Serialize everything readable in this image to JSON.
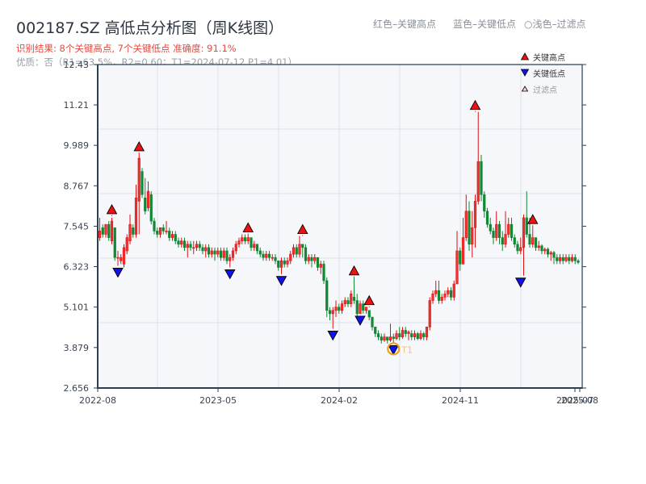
{
  "header": {
    "title": "002187.SZ 高低点分析图（周K线图）",
    "result": "识别结果: 8个关键高点, 7个关键低点   准确度: 91.1%",
    "quality": "优质：否（R1=63.5%，R2=0.60；T1=2024-07-12 P1=4.01）"
  },
  "top_legend": {
    "red": "红色–关键高点",
    "blue": "蓝色–关键低点",
    "light": "○浅色–过滤点"
  },
  "legend": {
    "items": [
      {
        "label": "关键高点",
        "icon": "red-up-triangle-icon",
        "color": "#ee1111"
      },
      {
        "label": "关键低点",
        "icon": "blue-down-triangle-icon",
        "color": "#1111ee"
      },
      {
        "label": "过滤点",
        "icon": "hollow-up-triangle-icon",
        "color": "#ffcccc"
      }
    ]
  },
  "colors": {
    "up": "#dd1111",
    "down": "#118833",
    "plot_bg": "#f5f7fa",
    "grid": "#dde1e6",
    "axis": "#2c3e50",
    "t1_marker": "#f0a020"
  },
  "chart_data": {
    "type": "candlestick",
    "title": "002187.SZ 高低点分析图（周K线图）",
    "xlabel": "",
    "ylabel": "",
    "ylim": [
      2.656,
      12.43
    ],
    "yticks": [
      "2.656",
      "3.879",
      "5.101",
      "6.323",
      "7.545",
      "8.767",
      "9.989",
      "11.21",
      "12.43"
    ],
    "xticks": [
      "2022-08",
      "2023-05",
      "2024-02",
      "2024-11",
      "2025-07",
      "2025-08"
    ],
    "grid": true,
    "legend_position": "top-right inside",
    "annotation": "T1",
    "key_highs": [
      {
        "index": 4,
        "price": 7.85
      },
      {
        "index": 13,
        "price": 9.75
      },
      {
        "index": 49,
        "price": 7.3
      },
      {
        "index": 67,
        "price": 7.25
      },
      {
        "index": 84,
        "price": 6.0
      },
      {
        "index": 89,
        "price": 5.1
      },
      {
        "index": 124,
        "price": 11.0
      },
      {
        "index": 143,
        "price": 7.55
      }
    ],
    "key_lows": [
      {
        "index": 6,
        "price": 6.35
      },
      {
        "index": 43,
        "price": 6.3
      },
      {
        "index": 60,
        "price": 6.1
      },
      {
        "index": 77,
        "price": 4.45
      },
      {
        "index": 86,
        "price": 4.9
      },
      {
        "index": 97,
        "price": 4.01
      },
      {
        "index": 139,
        "price": 6.05
      }
    ],
    "t1": {
      "index": 97,
      "price": 4.01,
      "label": "T1"
    },
    "candles": [
      [
        7.2,
        7.4,
        7.8,
        7.1
      ],
      [
        7.5,
        7.3,
        7.6,
        7.2
      ],
      [
        7.3,
        7.6,
        7.6,
        7.2
      ],
      [
        7.6,
        7.2,
        7.7,
        7.1
      ],
      [
        7.1,
        7.7,
        7.8,
        7.0
      ],
      [
        7.5,
        6.6,
        7.5,
        6.5
      ],
      [
        6.6,
        6.6,
        6.8,
        6.35
      ],
      [
        6.5,
        6.6,
        6.7,
        6.4
      ],
      [
        6.4,
        6.9,
        7.0,
        6.3
      ],
      [
        6.8,
        7.2,
        7.3,
        6.7
      ],
      [
        7.1,
        7.6,
        7.9,
        7.0
      ],
      [
        7.5,
        7.3,
        7.6,
        7.2
      ],
      [
        7.3,
        8.4,
        8.8,
        7.2
      ],
      [
        8.3,
        9.6,
        9.75,
        7.3
      ],
      [
        9.2,
        8.5,
        9.3,
        8.4
      ],
      [
        8.4,
        8.0,
        9.0,
        7.9
      ],
      [
        8.1,
        8.6,
        8.9,
        8.0
      ],
      [
        8.5,
        7.7,
        8.6,
        7.6
      ],
      [
        7.7,
        7.4,
        7.8,
        7.3
      ],
      [
        7.4,
        7.3,
        7.5,
        7.2
      ],
      [
        7.3,
        7.5,
        7.5,
        7.2
      ],
      [
        7.5,
        7.4,
        7.6,
        7.3
      ],
      [
        7.4,
        7.4,
        7.7,
        7.3
      ],
      [
        7.4,
        7.2,
        7.5,
        7.1
      ],
      [
        7.2,
        7.3,
        7.4,
        7.1
      ],
      [
        7.3,
        7.1,
        7.4,
        7.0
      ],
      [
        7.1,
        7.0,
        7.2,
        6.9
      ],
      [
        7.0,
        7.1,
        7.2,
        6.9
      ],
      [
        7.1,
        6.9,
        7.2,
        6.8
      ],
      [
        6.9,
        7.0,
        7.1,
        6.6
      ],
      [
        7.0,
        6.9,
        7.1,
        6.8
      ],
      [
        6.9,
        6.9,
        7.1,
        6.7
      ],
      [
        6.9,
        7.0,
        7.1,
        6.8
      ],
      [
        7.0,
        6.9,
        7.1,
        6.8
      ],
      [
        6.9,
        6.8,
        7.0,
        6.7
      ],
      [
        6.8,
        6.9,
        7.0,
        6.6
      ],
      [
        6.9,
        6.7,
        7.0,
        6.6
      ],
      [
        6.7,
        6.8,
        6.9,
        6.6
      ],
      [
        6.8,
        6.7,
        6.9,
        6.5
      ],
      [
        6.7,
        6.8,
        6.9,
        6.6
      ],
      [
        6.8,
        6.6,
        6.9,
        6.5
      ],
      [
        6.6,
        6.8,
        6.9,
        6.5
      ],
      [
        6.8,
        6.5,
        6.9,
        6.4
      ],
      [
        6.5,
        6.6,
        6.7,
        6.3
      ],
      [
        6.6,
        6.8,
        6.9,
        6.5
      ],
      [
        6.8,
        7.0,
        7.1,
        6.7
      ],
      [
        7.0,
        7.1,
        7.2,
        6.9
      ],
      [
        7.1,
        7.2,
        7.3,
        7.0
      ],
      [
        7.2,
        7.1,
        7.3,
        7.0
      ],
      [
        7.1,
        7.2,
        7.3,
        7.0
      ],
      [
        7.2,
        6.9,
        7.2,
        6.8
      ],
      [
        6.9,
        7.0,
        7.1,
        6.8
      ],
      [
        7.0,
        6.8,
        7.0,
        6.7
      ],
      [
        6.8,
        6.7,
        6.9,
        6.6
      ],
      [
        6.7,
        6.6,
        6.8,
        6.5
      ],
      [
        6.6,
        6.7,
        6.8,
        6.5
      ],
      [
        6.7,
        6.6,
        6.8,
        6.5
      ],
      [
        6.6,
        6.6,
        6.7,
        6.5
      ],
      [
        6.6,
        6.5,
        6.7,
        6.4
      ],
      [
        6.5,
        6.3,
        6.5,
        6.2
      ],
      [
        6.3,
        6.5,
        6.6,
        6.1
      ],
      [
        6.5,
        6.4,
        6.6,
        6.3
      ],
      [
        6.4,
        6.5,
        6.6,
        6.3
      ],
      [
        6.5,
        6.7,
        6.8,
        6.4
      ],
      [
        6.7,
        6.9,
        7.0,
        6.6
      ],
      [
        6.9,
        6.7,
        7.0,
        6.6
      ],
      [
        6.7,
        7.0,
        7.25,
        6.6
      ],
      [
        7.0,
        6.9,
        7.0,
        6.6
      ],
      [
        6.9,
        6.5,
        7.0,
        6.4
      ],
      [
        6.5,
        6.6,
        6.7,
        6.4
      ],
      [
        6.6,
        6.5,
        6.7,
        6.3
      ],
      [
        6.5,
        6.6,
        6.7,
        6.4
      ],
      [
        6.6,
        6.3,
        6.6,
        6.2
      ],
      [
        6.3,
        6.4,
        6.5,
        6.1
      ],
      [
        6.4,
        5.9,
        6.5,
        5.8
      ],
      [
        5.9,
        5.0,
        6.0,
        4.8
      ],
      [
        5.0,
        4.9,
        5.1,
        4.7
      ],
      [
        4.9,
        5.0,
        5.1,
        4.45
      ],
      [
        5.0,
        5.1,
        5.3,
        4.8
      ],
      [
        5.1,
        5.0,
        5.2,
        4.9
      ],
      [
        5.0,
        5.2,
        5.3,
        4.9
      ],
      [
        5.2,
        5.3,
        5.4,
        5.1
      ],
      [
        5.3,
        5.2,
        5.4,
        5.1
      ],
      [
        5.2,
        5.5,
        5.6,
        5.1
      ],
      [
        5.4,
        5.3,
        6.0,
        5.2
      ],
      [
        5.3,
        4.9,
        5.5,
        4.8
      ],
      [
        4.9,
        5.2,
        5.3,
        4.9
      ],
      [
        5.2,
        5.0,
        5.3,
        4.9
      ],
      [
        5.0,
        5.1,
        5.1,
        4.9
      ],
      [
        5.0,
        4.8,
        5.0,
        4.7
      ],
      [
        4.8,
        4.5,
        4.8,
        4.4
      ],
      [
        4.5,
        4.3,
        4.5,
        4.2
      ],
      [
        4.3,
        4.2,
        4.4,
        4.1
      ],
      [
        4.2,
        4.1,
        4.3,
        4.0
      ],
      [
        4.1,
        4.2,
        4.3,
        4.05
      ],
      [
        4.2,
        4.1,
        4.2,
        4.0
      ],
      [
        4.1,
        4.2,
        4.6,
        4.05
      ],
      [
        4.2,
        4.15,
        4.3,
        4.01
      ],
      [
        4.15,
        4.3,
        4.4,
        4.1
      ],
      [
        4.3,
        4.2,
        4.5,
        4.1
      ],
      [
        4.2,
        4.4,
        4.5,
        4.15
      ],
      [
        4.4,
        4.3,
        4.5,
        4.2
      ],
      [
        4.3,
        4.35,
        4.4,
        4.1
      ],
      [
        4.3,
        4.2,
        4.4,
        4.1
      ],
      [
        4.2,
        4.3,
        4.4,
        4.1
      ],
      [
        4.3,
        4.15,
        4.35,
        4.1
      ],
      [
        4.15,
        4.3,
        4.4,
        4.1
      ],
      [
        4.3,
        4.2,
        4.35,
        4.1
      ],
      [
        4.2,
        4.5,
        4.5,
        4.1
      ],
      [
        4.5,
        5.3,
        5.4,
        4.4
      ],
      [
        5.3,
        5.5,
        5.6,
        5.2
      ],
      [
        5.5,
        5.6,
        5.9,
        5.4
      ],
      [
        5.6,
        5.3,
        5.9,
        5.2
      ],
      [
        5.3,
        5.4,
        5.5,
        5.2
      ],
      [
        5.4,
        5.5,
        5.6,
        5.3
      ],
      [
        5.5,
        5.6,
        5.7,
        5.4
      ],
      [
        5.6,
        5.4,
        5.7,
        5.3
      ],
      [
        5.4,
        5.8,
        5.9,
        5.3
      ],
      [
        5.8,
        6.8,
        7.4,
        5.8
      ],
      [
        6.8,
        6.4,
        6.9,
        6.2
      ],
      [
        6.4,
        7.2,
        7.8,
        6.4
      ],
      [
        7.2,
        8.0,
        8.5,
        7.1
      ],
      [
        8.0,
        7.0,
        8.3,
        6.8
      ],
      [
        7.0,
        7.5,
        8.0,
        6.6
      ],
      [
        7.5,
        8.3,
        8.5,
        6.9
      ],
      [
        8.3,
        9.5,
        11.0,
        8.2
      ],
      [
        9.5,
        8.5,
        9.7,
        8.3
      ],
      [
        8.5,
        8.0,
        8.6,
        7.8
      ],
      [
        8.0,
        7.6,
        8.1,
        7.5
      ],
      [
        7.6,
        7.4,
        7.8,
        7.3
      ],
      [
        7.4,
        7.2,
        7.5,
        7.0
      ],
      [
        7.2,
        7.6,
        8.0,
        7.1
      ],
      [
        7.6,
        7.2,
        7.7,
        7.0
      ],
      [
        7.2,
        7.0,
        7.4,
        6.8
      ],
      [
        7.0,
        7.3,
        8.0,
        6.9
      ],
      [
        7.3,
        7.6,
        7.8,
        7.2
      ],
      [
        7.6,
        7.2,
        7.8,
        7.1
      ],
      [
        7.2,
        7.0,
        7.3,
        6.9
      ],
      [
        7.0,
        6.8,
        7.1,
        6.7
      ],
      [
        6.8,
        6.9,
        7.2,
        6.7
      ],
      [
        6.9,
        7.8,
        7.9,
        6.05
      ],
      [
        7.8,
        7.3,
        8.6,
        7.2
      ],
      [
        7.3,
        7.0,
        7.8,
        6.9
      ],
      [
        7.0,
        7.2,
        7.55,
        6.9
      ],
      [
        7.2,
        6.9,
        7.2,
        6.8
      ],
      [
        6.9,
        6.95,
        7.1,
        6.8
      ],
      [
        6.95,
        6.8,
        7.0,
        6.7
      ],
      [
        6.8,
        6.85,
        6.9,
        6.7
      ],
      [
        6.85,
        6.7,
        6.9,
        6.6
      ],
      [
        6.7,
        6.75,
        6.8,
        6.5
      ],
      [
        6.75,
        6.6,
        6.8,
        6.4
      ],
      [
        6.6,
        6.5,
        6.7,
        6.4
      ],
      [
        6.5,
        6.6,
        6.7,
        6.4
      ],
      [
        6.6,
        6.5,
        6.7,
        6.4
      ],
      [
        6.5,
        6.6,
        6.7,
        6.45
      ],
      [
        6.6,
        6.5,
        6.7,
        6.4
      ],
      [
        6.5,
        6.6,
        6.7,
        6.45
      ],
      [
        6.6,
        6.5,
        6.7,
        6.4
      ],
      [
        6.5,
        6.45,
        6.55,
        6.4
      ]
    ]
  }
}
